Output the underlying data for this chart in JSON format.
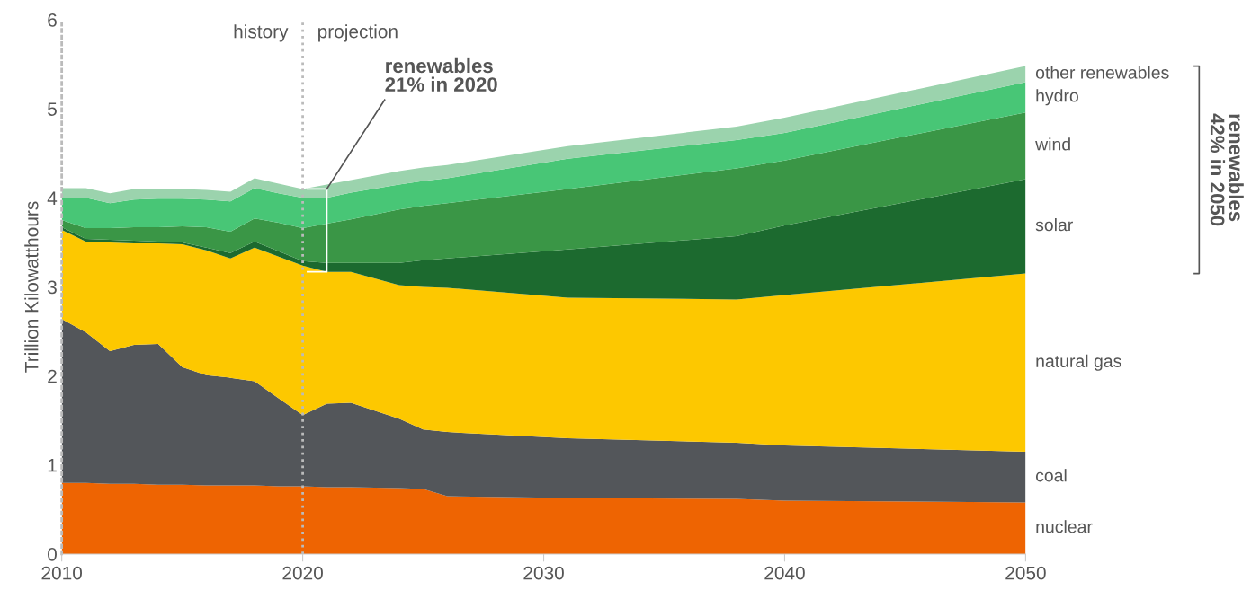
{
  "chart_data": {
    "type": "area",
    "stacked": true,
    "ylabel": "Trillion Kilowatthours",
    "x": [
      2010,
      2011,
      2012,
      2013,
      2014,
      2015,
      2016,
      2017,
      2018,
      2019,
      2020,
      2021,
      2022,
      2024,
      2025,
      2026,
      2031,
      2038,
      2040,
      2050
    ],
    "series": [
      {
        "name": "nuclear",
        "color": "#ee6402",
        "values": [
          0.8,
          0.8,
          0.79,
          0.79,
          0.78,
          0.78,
          0.77,
          0.77,
          0.77,
          0.76,
          0.76,
          0.75,
          0.75,
          0.74,
          0.73,
          0.65,
          0.63,
          0.62,
          0.6,
          0.58
        ]
      },
      {
        "name": "coal",
        "color": "#53565a",
        "values": [
          1.84,
          1.69,
          1.49,
          1.56,
          1.58,
          1.32,
          1.24,
          1.21,
          1.17,
          0.99,
          0.8,
          0.94,
          0.95,
          0.78,
          0.67,
          0.72,
          0.67,
          0.63,
          0.62,
          0.57
        ]
      },
      {
        "name": "natural gas",
        "color": "#fdc800",
        "values": [
          1.0,
          1.02,
          1.22,
          1.14,
          1.13,
          1.38,
          1.4,
          1.34,
          1.5,
          1.59,
          1.68,
          1.48,
          1.47,
          1.5,
          1.6,
          1.62,
          1.58,
          1.61,
          1.69,
          2.0
        ]
      },
      {
        "name": "solar",
        "color": "#1c6a2f",
        "values": [
          0.03,
          0.03,
          0.03,
          0.03,
          0.02,
          0.02,
          0.03,
          0.06,
          0.07,
          0.06,
          0.05,
          0.1,
          0.1,
          0.25,
          0.3,
          0.33,
          0.54,
          0.71,
          0.78,
          1.06
        ]
      },
      {
        "name": "wind",
        "color": "#3a9646",
        "values": [
          0.08,
          0.12,
          0.13,
          0.15,
          0.16,
          0.18,
          0.23,
          0.24,
          0.26,
          0.32,
          0.37,
          0.44,
          0.49,
          0.6,
          0.61,
          0.62,
          0.68,
          0.76,
          0.73,
          0.75
        ]
      },
      {
        "name": "hydro",
        "color": "#48c676",
        "values": [
          0.25,
          0.34,
          0.28,
          0.31,
          0.32,
          0.31,
          0.31,
          0.34,
          0.34,
          0.33,
          0.34,
          0.29,
          0.3,
          0.28,
          0.28,
          0.28,
          0.34,
          0.32,
          0.31,
          0.34
        ]
      },
      {
        "name": "other renewables",
        "color": "#9bd3ad",
        "values": [
          0.11,
          0.11,
          0.11,
          0.12,
          0.11,
          0.11,
          0.11,
          0.11,
          0.11,
          0.11,
          0.1,
          0.15,
          0.14,
          0.15,
          0.15,
          0.15,
          0.14,
          0.15,
          0.17,
          0.18
        ]
      }
    ],
    "xlim": [
      2010,
      2050
    ],
    "ylim": [
      0,
      6
    ],
    "xticks": [
      2010,
      2020,
      2030,
      2040,
      2050
    ],
    "yticks": [
      0,
      1,
      2,
      3,
      4,
      5,
      6
    ],
    "grid": false,
    "ref_lines": [
      {
        "axis": "x",
        "value": 2020,
        "label": null,
        "color": "#bbbbbb",
        "line_style": "dotted"
      }
    ],
    "annotations": [
      "history",
      "projection",
      {
        "text": "renewables\n21% in 2020",
        "x": 2021,
        "y": 4.1
      },
      "renewables\n42% in 2050"
    ]
  }
}
